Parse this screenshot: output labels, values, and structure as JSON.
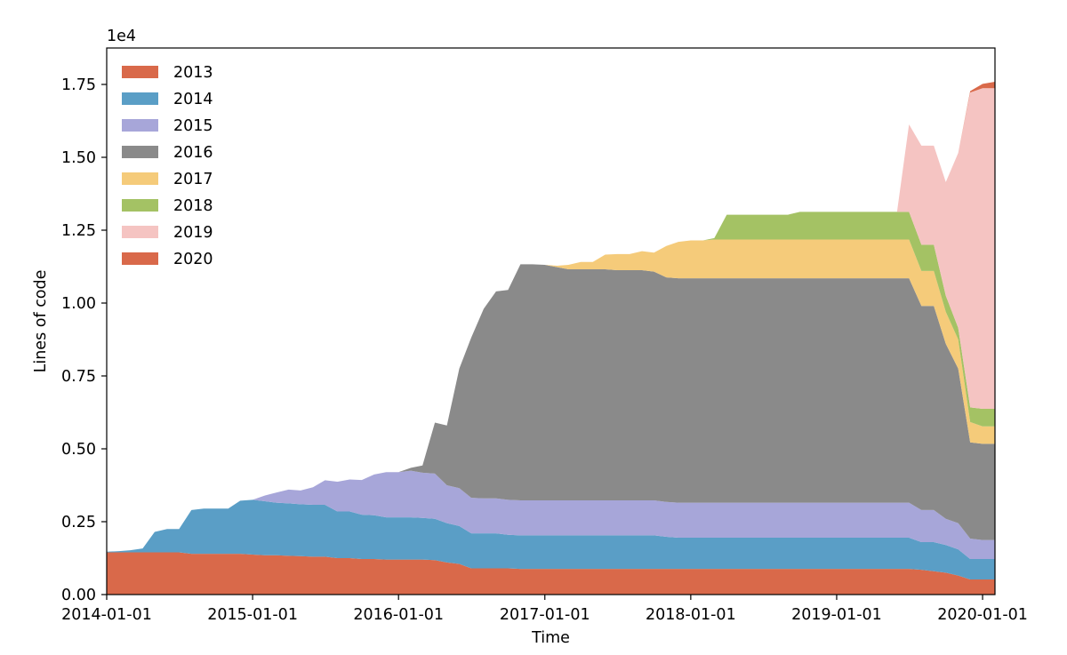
{
  "chart_data": {
    "type": "area",
    "stacked": true,
    "xlabel": "Time",
    "ylabel": "Lines of code",
    "y_scale_label": "1e4",
    "y_multiplier": 10000,
    "xlim": [
      "2014-01-01",
      "2020-02-01"
    ],
    "ylim": [
      0,
      1.875
    ],
    "x_ticks": [
      "2014-01-01",
      "2015-01-01",
      "2016-01-01",
      "2017-01-01",
      "2018-01-01",
      "2019-01-01",
      "2020-01-01"
    ],
    "y_ticks": [
      "0.00",
      "0.25",
      "0.50",
      "0.75",
      "1.00",
      "1.25",
      "1.50",
      "1.75"
    ],
    "grid": false,
    "legend_position": "top-left",
    "x": [
      "2014-01-01",
      "2014-02-01",
      "2014-03-01",
      "2014-04-01",
      "2014-05-01",
      "2014-06-01",
      "2014-07-01",
      "2014-08-01",
      "2014-09-01",
      "2014-10-01",
      "2014-11-01",
      "2014-12-01",
      "2015-01-01",
      "2015-02-01",
      "2015-03-01",
      "2015-04-01",
      "2015-05-01",
      "2015-06-01",
      "2015-07-01",
      "2015-08-01",
      "2015-09-01",
      "2015-10-01",
      "2015-11-01",
      "2015-12-01",
      "2016-01-01",
      "2016-02-01",
      "2016-03-01",
      "2016-04-01",
      "2016-05-01",
      "2016-06-01",
      "2016-07-01",
      "2016-08-01",
      "2016-09-01",
      "2016-10-01",
      "2016-11-01",
      "2016-12-01",
      "2017-01-01",
      "2017-02-01",
      "2017-03-01",
      "2017-04-01",
      "2017-05-01",
      "2017-06-01",
      "2017-07-01",
      "2017-08-01",
      "2017-09-01",
      "2017-10-01",
      "2017-11-01",
      "2017-12-01",
      "2018-01-01",
      "2018-02-01",
      "2018-03-01",
      "2018-04-01",
      "2018-05-01",
      "2018-06-01",
      "2018-07-01",
      "2018-08-01",
      "2018-09-01",
      "2018-10-01",
      "2018-11-01",
      "2018-12-01",
      "2019-01-01",
      "2019-02-01",
      "2019-03-01",
      "2019-04-01",
      "2019-05-01",
      "2019-06-01",
      "2019-07-01",
      "2019-08-01",
      "2019-09-01",
      "2019-10-01",
      "2019-11-01",
      "2019-12-01",
      "2020-01-01",
      "2020-02-01"
    ],
    "series": [
      {
        "name": "2013",
        "color": "#D9694A",
        "values": [
          0.145,
          0.145,
          0.145,
          0.145,
          0.145,
          0.145,
          0.145,
          0.14,
          0.14,
          0.14,
          0.14,
          0.14,
          0.137,
          0.135,
          0.135,
          0.133,
          0.132,
          0.13,
          0.13,
          0.125,
          0.125,
          0.122,
          0.122,
          0.12,
          0.12,
          0.12,
          0.12,
          0.118,
          0.11,
          0.105,
          0.09,
          0.09,
          0.09,
          0.09,
          0.088,
          0.088,
          0.088,
          0.088,
          0.088,
          0.088,
          0.088,
          0.088,
          0.088,
          0.088,
          0.088,
          0.088,
          0.088,
          0.088,
          0.088,
          0.088,
          0.088,
          0.088,
          0.088,
          0.088,
          0.088,
          0.088,
          0.088,
          0.088,
          0.088,
          0.088,
          0.088,
          0.088,
          0.088,
          0.088,
          0.088,
          0.088,
          0.088,
          0.085,
          0.08,
          0.075,
          0.065,
          0.052,
          0.052,
          0.052
        ]
      },
      {
        "name": "2014",
        "color": "#5A9EC6",
        "values": [
          0.002,
          0.004,
          0.007,
          0.013,
          0.07,
          0.08,
          0.08,
          0.15,
          0.155,
          0.155,
          0.155,
          0.182,
          0.188,
          0.185,
          0.18,
          0.18,
          0.178,
          0.178,
          0.178,
          0.16,
          0.16,
          0.152,
          0.15,
          0.145,
          0.145,
          0.145,
          0.143,
          0.142,
          0.135,
          0.13,
          0.12,
          0.12,
          0.12,
          0.115,
          0.115,
          0.115,
          0.115,
          0.115,
          0.115,
          0.115,
          0.115,
          0.115,
          0.115,
          0.115,
          0.115,
          0.115,
          0.11,
          0.107,
          0.107,
          0.107,
          0.107,
          0.107,
          0.107,
          0.107,
          0.107,
          0.107,
          0.107,
          0.107,
          0.107,
          0.107,
          0.107,
          0.107,
          0.107,
          0.107,
          0.107,
          0.107,
          0.107,
          0.095,
          0.1,
          0.095,
          0.09,
          0.07,
          0.07,
          0.07
        ]
      },
      {
        "name": "2015",
        "color": "#A7A6D9",
        "values": [
          0,
          0,
          0,
          0,
          0,
          0,
          0,
          0,
          0,
          0,
          0,
          0,
          0,
          0.02,
          0.035,
          0.047,
          0.047,
          0.06,
          0.084,
          0.102,
          0.11,
          0.119,
          0.14,
          0.155,
          0.155,
          0.16,
          0.155,
          0.155,
          0.13,
          0.13,
          0.122,
          0.12,
          0.12,
          0.12,
          0.12,
          0.12,
          0.12,
          0.12,
          0.12,
          0.12,
          0.12,
          0.12,
          0.12,
          0.12,
          0.12,
          0.12,
          0.12,
          0.12,
          0.12,
          0.12,
          0.12,
          0.12,
          0.12,
          0.12,
          0.12,
          0.12,
          0.12,
          0.12,
          0.12,
          0.12,
          0.12,
          0.12,
          0.12,
          0.12,
          0.12,
          0.12,
          0.12,
          0.11,
          0.11,
          0.09,
          0.09,
          0.07,
          0.065,
          0.065
        ]
      },
      {
        "name": "2016",
        "color": "#8A8A8A",
        "values": [
          0,
          0,
          0,
          0,
          0,
          0,
          0,
          0,
          0,
          0,
          0,
          0,
          0,
          0,
          0,
          0,
          0,
          0,
          0,
          0,
          0,
          0,
          0,
          0,
          0,
          0.01,
          0.025,
          0.175,
          0.205,
          0.41,
          0.55,
          0.65,
          0.71,
          0.72,
          0.81,
          0.81,
          0.808,
          0.8,
          0.793,
          0.793,
          0.793,
          0.793,
          0.79,
          0.79,
          0.79,
          0.785,
          0.77,
          0.77,
          0.77,
          0.77,
          0.77,
          0.77,
          0.77,
          0.77,
          0.77,
          0.77,
          0.77,
          0.77,
          0.77,
          0.77,
          0.77,
          0.77,
          0.77,
          0.77,
          0.77,
          0.77,
          0.77,
          0.7,
          0.7,
          0.6,
          0.53,
          0.33,
          0.33,
          0.33
        ]
      },
      {
        "name": "2017",
        "color": "#F5CB7A",
        "values": [
          0,
          0,
          0,
          0,
          0,
          0,
          0,
          0,
          0,
          0,
          0,
          0,
          0,
          0,
          0,
          0,
          0,
          0,
          0,
          0,
          0,
          0,
          0,
          0,
          0,
          0,
          0,
          0,
          0,
          0,
          0,
          0,
          0,
          0,
          0,
          0,
          0,
          0.005,
          0.015,
          0.025,
          0.025,
          0.05,
          0.055,
          0.055,
          0.065,
          0.065,
          0.108,
          0.125,
          0.13,
          0.13,
          0.133,
          0.133,
          0.133,
          0.133,
          0.133,
          0.133,
          0.133,
          0.133,
          0.133,
          0.133,
          0.133,
          0.133,
          0.133,
          0.133,
          0.133,
          0.133,
          0.133,
          0.12,
          0.12,
          0.11,
          0.1,
          0.07,
          0.06,
          0.06
        ]
      },
      {
        "name": "2018",
        "color": "#A4C264",
        "values": [
          0,
          0,
          0,
          0,
          0,
          0,
          0,
          0,
          0,
          0,
          0,
          0,
          0,
          0,
          0,
          0,
          0,
          0,
          0,
          0,
          0,
          0,
          0,
          0,
          0,
          0,
          0,
          0,
          0,
          0,
          0,
          0,
          0,
          0,
          0,
          0,
          0,
          0,
          0,
          0,
          0,
          0,
          0,
          0,
          0,
          0,
          0,
          0,
          0,
          0,
          0.005,
          0.085,
          0.085,
          0.085,
          0.085,
          0.085,
          0.085,
          0.095,
          0.095,
          0.095,
          0.095,
          0.095,
          0.095,
          0.095,
          0.095,
          0.095,
          0.095,
          0.09,
          0.09,
          0.055,
          0.04,
          0.05,
          0.06,
          0.06
        ]
      },
      {
        "name": "2019",
        "color": "#F5C4C2",
        "values": [
          0,
          0,
          0,
          0,
          0,
          0,
          0,
          0,
          0,
          0,
          0,
          0,
          0,
          0,
          0,
          0,
          0,
          0,
          0,
          0,
          0,
          0,
          0,
          0,
          0,
          0,
          0,
          0,
          0,
          0,
          0,
          0,
          0,
          0,
          0,
          0,
          0,
          0,
          0,
          0,
          0,
          0,
          0,
          0,
          0,
          0,
          0,
          0,
          0,
          0,
          0,
          0,
          0,
          0,
          0,
          0,
          0,
          0,
          0,
          0,
          0,
          0,
          0,
          0,
          0,
          0,
          0.3,
          0.34,
          0.34,
          0.39,
          0.6,
          1.08,
          1.1,
          1.1
        ]
      },
      {
        "name": "2020",
        "color": "#D9694A",
        "values": [
          0,
          0,
          0,
          0,
          0,
          0,
          0,
          0,
          0,
          0,
          0,
          0,
          0,
          0,
          0,
          0,
          0,
          0,
          0,
          0,
          0,
          0,
          0,
          0,
          0,
          0,
          0,
          0,
          0,
          0,
          0,
          0,
          0,
          0,
          0,
          0,
          0,
          0,
          0,
          0,
          0,
          0,
          0,
          0,
          0,
          0,
          0,
          0,
          0,
          0,
          0,
          0,
          0,
          0,
          0,
          0,
          0,
          0,
          0,
          0,
          0,
          0,
          0,
          0,
          0,
          0,
          0,
          0,
          0,
          0,
          0,
          0.005,
          0.015,
          0.022
        ]
      }
    ]
  }
}
